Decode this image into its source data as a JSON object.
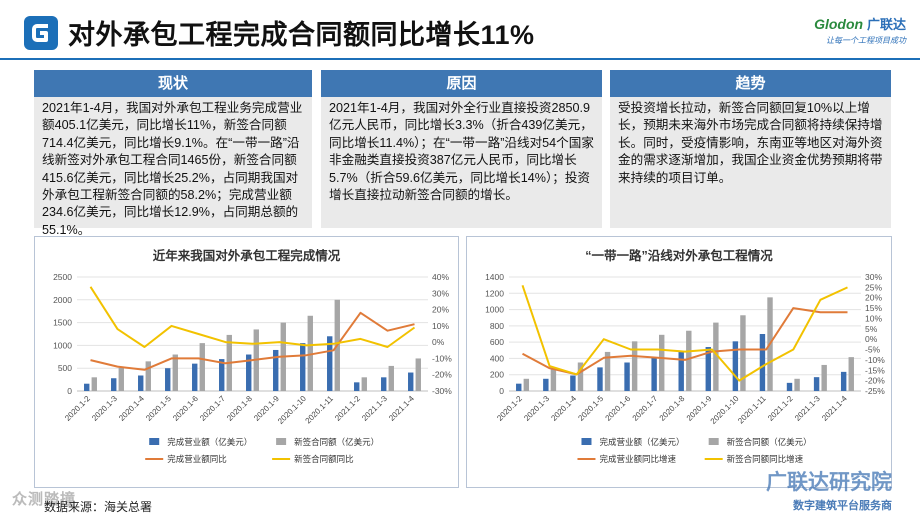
{
  "header": {
    "title": "对外承包工程完成合同额同比增长11%",
    "brand_name": "Glodon",
    "brand_cn": "广联达",
    "brand_slogan": "让每一个工程项目成功"
  },
  "panels": [
    {
      "heading": "现状",
      "text": "2021年1-4月，我国对外承包工程业务完成营业额405.1亿美元，同比增长11%，新签合同额714.4亿美元，同比增长9.1%。在“一带一路”沿线新签对外承包工程合同1465份，新签合同额415.6亿美元，同比增长25.2%，占同期我国对外承包工程新签合同额的58.2%；完成营业额234.6亿美元，同比增长12.9%，占同期总额的55.1%。"
    },
    {
      "heading": "原因",
      "text": "2021年1-4月，我国对外全行业直接投资2850.9亿元人民币，同比增长3.3%（折合439亿美元，同比增长11.4%）；在“一带一路”沿线对54个国家非金融类直接投资387亿元人民币，同比增长5.7%（折合59.6亿美元，同比增长14%）；投资增长直接拉动新签合同额的增长。"
    },
    {
      "heading": "趋势",
      "text": "受投资增长拉动，新签合同额回复10%以上增长，预期未来海外市场完成合同额将持续保持增长。同时，受疫情影响，东南亚等地区对海外资金的需求逐渐增加，我国企业资金优势预期将带来持续的项目订单。"
    }
  ],
  "chart_data": [
    {
      "type": "bar",
      "title": "近年来我国对外承包工程完成情况",
      "categories": [
        "2020.1-2",
        "2020.1-3",
        "2020.1-4",
        "2020.1-5",
        "2020.1-6",
        "2020.1-7",
        "2020.1-8",
        "2020.1-9",
        "2020.1-10",
        "2020.1-11",
        "2021.1-2",
        "2021.1-3",
        "2021.1-4"
      ],
      "series": [
        {
          "name": "完成营业额（亿美元）",
          "kind": "bar",
          "axis": "left",
          "color": "#3a6db0",
          "values": [
            160,
            280,
            340,
            500,
            600,
            700,
            800,
            900,
            1050,
            1200,
            190,
            300,
            405
          ]
        },
        {
          "name": "新签合同额（亿美元）",
          "kind": "bar",
          "axis": "left",
          "color": "#a6a6a6",
          "values": [
            300,
            510,
            650,
            800,
            1050,
            1230,
            1350,
            1500,
            1650,
            2000,
            300,
            550,
            714
          ]
        },
        {
          "name": "完成营业额同比",
          "kind": "line",
          "axis": "right",
          "color": "#e07b39",
          "values": [
            -11,
            -15,
            -17,
            -10,
            -10,
            -13,
            -11,
            -9,
            -8,
            -5,
            18,
            7,
            11
          ]
        },
        {
          "name": "新签合同额同比",
          "kind": "line",
          "axis": "right",
          "color": "#f2c200",
          "values": [
            34,
            8,
            -3,
            10,
            5,
            0,
            -1,
            0,
            -2,
            -1,
            2,
            -3,
            9
          ]
        }
      ],
      "ylim": [
        0,
        2500
      ],
      "y2lim": [
        -30,
        40
      ],
      "yticks": [
        0,
        500,
        1000,
        1500,
        2000,
        2500
      ],
      "y2ticks": [
        -30,
        -20,
        -10,
        0,
        10,
        20,
        30,
        40
      ],
      "legend": "bottom"
    },
    {
      "type": "bar",
      "title": "“一带一路”沿线对外承包工程情况",
      "categories": [
        "2020.1-2",
        "2020.1-3",
        "2020.1-4",
        "2020.1-5",
        "2020.1-6",
        "2020.1-7",
        "2020.1-8",
        "2020.1-9",
        "2020.1-10",
        "2020.1-11",
        "2021.1-2",
        "2021.1-3",
        "2021.1-4"
      ],
      "series": [
        {
          "name": "完成营业额（亿美元）",
          "kind": "bar",
          "axis": "left",
          "color": "#3a6db0",
          "values": [
            90,
            150,
            190,
            290,
            350,
            410,
            480,
            540,
            610,
            700,
            100,
            170,
            235
          ]
        },
        {
          "name": "新签合同额（亿美元）",
          "kind": "bar",
          "axis": "left",
          "color": "#a6a6a6",
          "values": [
            150,
            270,
            350,
            480,
            610,
            690,
            740,
            840,
            930,
            1150,
            150,
            320,
            416
          ]
        },
        {
          "name": "完成营业额同比增速",
          "kind": "line",
          "axis": "right",
          "color": "#e07b39",
          "values": [
            -7,
            -14,
            -17,
            -9,
            -8,
            -9,
            -10,
            -6,
            -5,
            -5,
            15,
            13,
            13
          ]
        },
        {
          "name": "新签合同额同比增速",
          "kind": "line",
          "axis": "right",
          "color": "#f2c200",
          "values": [
            26,
            -13,
            -17,
            0,
            -5,
            -5,
            -6,
            -5,
            -20,
            -12,
            -5,
            19,
            25
          ]
        }
      ],
      "ylim": [
        0,
        1400
      ],
      "y2lim": [
        -25,
        30
      ],
      "yticks": [
        0,
        200,
        400,
        600,
        800,
        1000,
        1200,
        1400
      ],
      "y2ticks": [
        -25,
        -20,
        -15,
        -10,
        -5,
        0,
        5,
        10,
        15,
        20,
        25,
        30
      ],
      "legend": "bottom"
    }
  ],
  "footer": {
    "source": "数据来源：海关总署",
    "watermark_title": "广联达研究院",
    "watermark_sub": "数字建筑平台服务商",
    "watermark_left": "众测踏撞"
  }
}
